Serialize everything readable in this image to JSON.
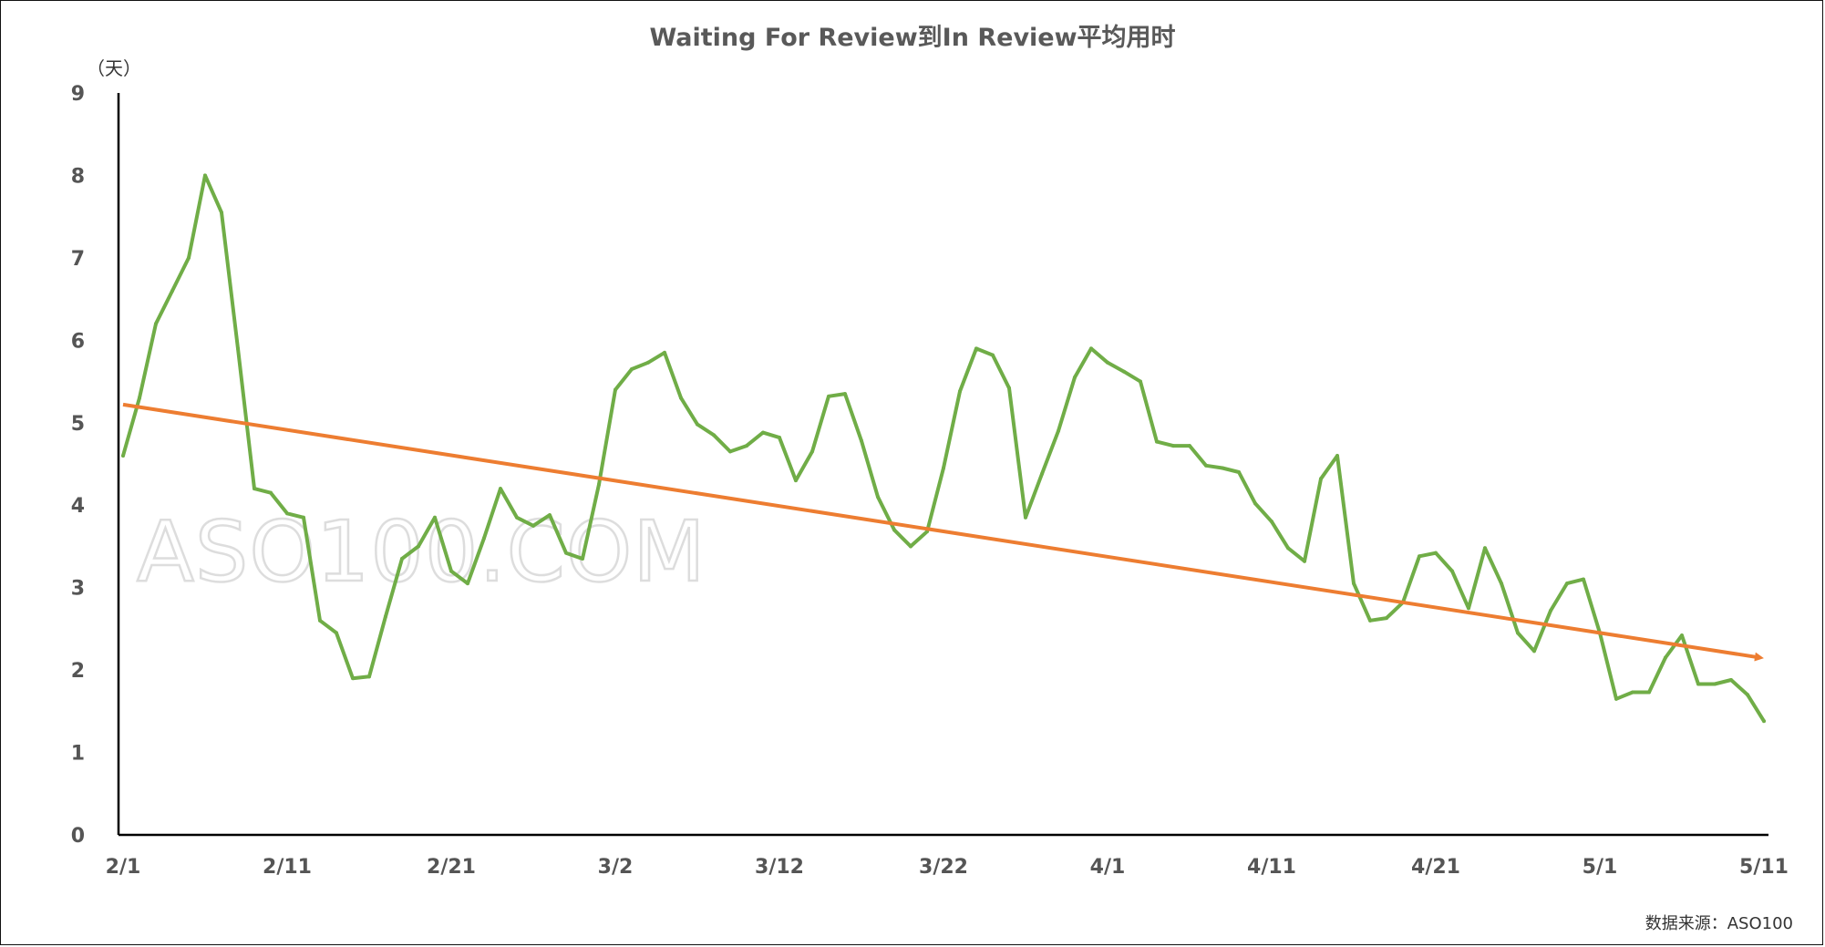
{
  "chart_data": {
    "type": "line",
    "title": "Waiting For Review到In Review平均用时",
    "ylabel": "（天）",
    "source": "数据来源：ASO100",
    "watermark": "ASO100.COM",
    "ylim": [
      0,
      9
    ],
    "yticks": [
      "0",
      "1",
      "2",
      "3",
      "4",
      "5",
      "6",
      "7",
      "8",
      "9"
    ],
    "x_start": "2/1",
    "x_days": 100,
    "xtick_labels": [
      "2/1",
      "2/11",
      "2/21",
      "3/2",
      "3/12",
      "3/22",
      "4/1",
      "4/11",
      "4/21",
      "5/1",
      "5/11"
    ],
    "grid": false,
    "series": [
      {
        "color": "#70AD47",
        "values": [
          4.6,
          5.3,
          6.2,
          6.6,
          7.0,
          8.0,
          7.55,
          5.9,
          4.2,
          4.15,
          3.9,
          3.85,
          2.6,
          2.45,
          1.9,
          1.92,
          2.65,
          3.35,
          3.5,
          3.85,
          3.2,
          3.05,
          3.6,
          4.2,
          3.85,
          3.75,
          3.88,
          3.42,
          3.35,
          4.25,
          5.4,
          5.65,
          5.73,
          5.85,
          5.3,
          4.98,
          4.85,
          4.65,
          4.72,
          4.88,
          4.82,
          4.3,
          4.65,
          5.32,
          5.35,
          4.78,
          4.1,
          3.7,
          3.5,
          3.68,
          4.45,
          5.38,
          5.9,
          5.82,
          5.42,
          3.85,
          4.38,
          4.9,
          5.55,
          5.9,
          5.73,
          5.62,
          5.5,
          4.77,
          4.72,
          4.72,
          4.48,
          4.45,
          4.4,
          4.02,
          3.8,
          3.48,
          3.32,
          4.32,
          4.6,
          3.05,
          2.6,
          2.63,
          2.82,
          3.38,
          3.42,
          3.2,
          2.75,
          3.48,
          3.05,
          2.45,
          2.23,
          2.72,
          3.05,
          3.1,
          2.45,
          1.65,
          1.73,
          1.73,
          2.15,
          2.42,
          1.83,
          1.83,
          1.88,
          1.7,
          1.38
        ]
      },
      {
        "color": "#ED7D31",
        "trend": true,
        "values": [
          5.22,
          2.15
        ]
      }
    ]
  }
}
